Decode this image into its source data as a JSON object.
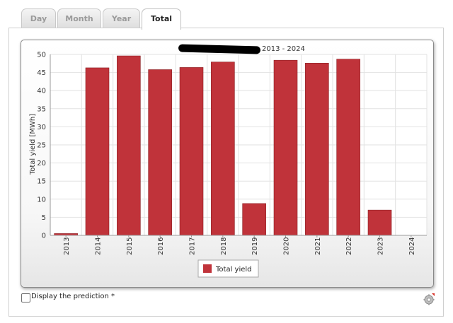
{
  "tabs": [
    {
      "label": "Day",
      "active": false
    },
    {
      "label": "Month",
      "active": false
    },
    {
      "label": "Year",
      "active": false
    },
    {
      "label": "Total",
      "active": true
    }
  ],
  "chart_title_suffix": "2013 - 2024",
  "prediction_label": "Display the prediction *",
  "prediction_checked": false,
  "settings_icon": "gear-icon",
  "colors": {
    "bar": "#c0333a",
    "bar_border": "#8b1f24",
    "grid": "#e2e2e2",
    "axis": "#999999"
  },
  "chart_data": {
    "type": "bar",
    "title": "2013 - 2024",
    "ylabel": "Total yield [MWh]",
    "xlabel": "",
    "categories": [
      "2013",
      "2014",
      "2015",
      "2016",
      "2017",
      "2018",
      "2019",
      "2020",
      "2021",
      "2022",
      "2023",
      "2024"
    ],
    "series": [
      {
        "name": "Total yield",
        "values": [
          0.5,
          46.3,
          49.6,
          45.8,
          46.4,
          47.9,
          8.8,
          48.4,
          47.6,
          48.7,
          7.0,
          0
        ]
      }
    ],
    "ylim": [
      0,
      50
    ],
    "yticks": [
      0,
      5,
      10,
      15,
      20,
      25,
      30,
      35,
      40,
      45,
      50
    ],
    "grid": true,
    "legend": "bottom-center"
  }
}
